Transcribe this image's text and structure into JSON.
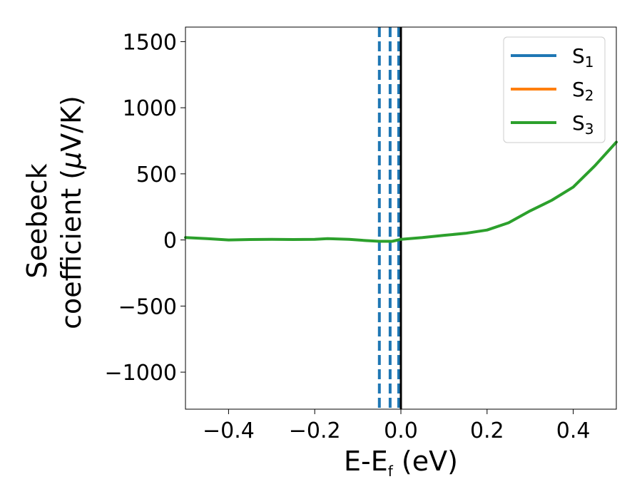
{
  "chart_data": {
    "type": "line",
    "xlabel": "E-E",
    "xlabel_sub": "f",
    "xlabel_unit": " (eV)",
    "ylabel_line1": "Seebeck",
    "ylabel_line2": "coefficient  (",
    "ylabel_mu": "μ",
    "ylabel_unit": "V/K)",
    "xlim": [
      -0.5,
      0.5
    ],
    "ylim": [
      -1280,
      1610
    ],
    "xticks": [
      -0.4,
      -0.2,
      0.0,
      0.2,
      0.4
    ],
    "xtick_labels": [
      "−0.4",
      "−0.2",
      "0.0",
      "0.2",
      "0.4"
    ],
    "yticks": [
      -1000,
      -500,
      0,
      500,
      1000,
      1500
    ],
    "ytick_labels": [
      "−1000",
      "−500",
      "0",
      "500",
      "1000",
      "1500"
    ],
    "grid": false,
    "legend_position": "top-right",
    "legend": [
      {
        "base": "S",
        "sub": "1",
        "color": "#1f77b4"
      },
      {
        "base": "S",
        "sub": "2",
        "color": "#ff7f0e"
      },
      {
        "base": "S",
        "sub": "3",
        "color": "#2ca02c"
      }
    ],
    "series": [
      {
        "color": "#2ca02c",
        "x": [
          -0.5,
          -0.45,
          -0.4,
          -0.35,
          -0.3,
          -0.25,
          -0.2,
          -0.17,
          -0.12,
          -0.08,
          -0.05,
          -0.02,
          0.0,
          0.05,
          0.1,
          0.15,
          0.2,
          0.25,
          0.3,
          0.35,
          0.4,
          0.45,
          0.5
        ],
        "y": [
          18,
          10,
          0,
          3,
          5,
          3,
          5,
          10,
          5,
          -5,
          -10,
          -10,
          5,
          18,
          35,
          50,
          75,
          130,
          220,
          300,
          400,
          560,
          740
        ]
      }
    ],
    "vlines": [
      {
        "x": -0.05,
        "color": "#1f77b4",
        "style": "dashed"
      },
      {
        "x": -0.025,
        "color": "#1f77b4",
        "style": "dashed"
      },
      {
        "x": -0.005,
        "color": "#1f77b4",
        "style": "dashed"
      },
      {
        "x": 0.0,
        "color": "#000000",
        "style": "solid"
      }
    ]
  }
}
